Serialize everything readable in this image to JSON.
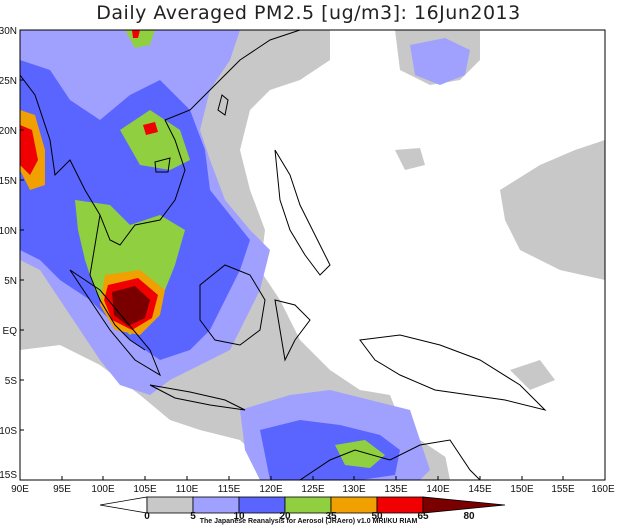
{
  "title": "Daily Averaged PM2.5 [ug/m3]: 16Jun2013",
  "credit": "The Japanese Reanalysis for Aerosol (JRAero) v1.0  MRI/KU RIAM",
  "map": {
    "lon_range": [
      90,
      160
    ],
    "lat_range": [
      -15,
      30
    ],
    "lon_ticks": [
      "90E",
      "95E",
      "100E",
      "105E",
      "110E",
      "115E",
      "120E",
      "125E",
      "130E",
      "135E",
      "140E",
      "145E",
      "150E",
      "155E",
      "160E"
    ],
    "lat_ticks": [
      "30N",
      "25N",
      "20N",
      "15N",
      "10N",
      "5N",
      "EQ",
      "5S",
      "10S",
      "15S"
    ]
  },
  "colorbar": {
    "labels": [
      "0",
      "5",
      "10",
      "20",
      "35",
      "50",
      "65",
      "80"
    ],
    "colors": [
      "#ffffff",
      "#c8c8c8",
      "#a0a0ff",
      "#5a64ff",
      "#90d040",
      "#f0a000",
      "#f00000",
      "#7a0000"
    ]
  }
}
